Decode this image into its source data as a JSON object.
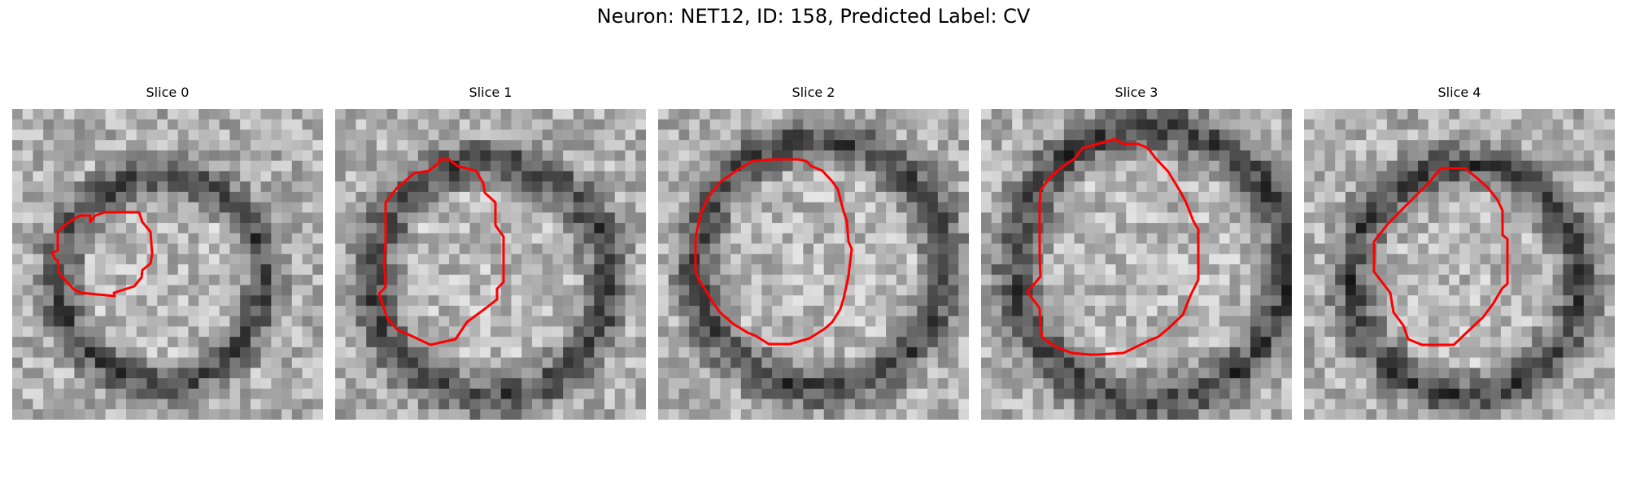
{
  "figure": {
    "title": "Neuron: NET12, ID: 158, Predicted Label: CV",
    "contour_color": "#ff0000"
  },
  "panels": [
    {
      "title": "Slice 0"
    },
    {
      "title": "Slice 1"
    },
    {
      "title": "Slice 2"
    },
    {
      "title": "Slice 3"
    },
    {
      "title": "Slice 4"
    }
  ]
}
